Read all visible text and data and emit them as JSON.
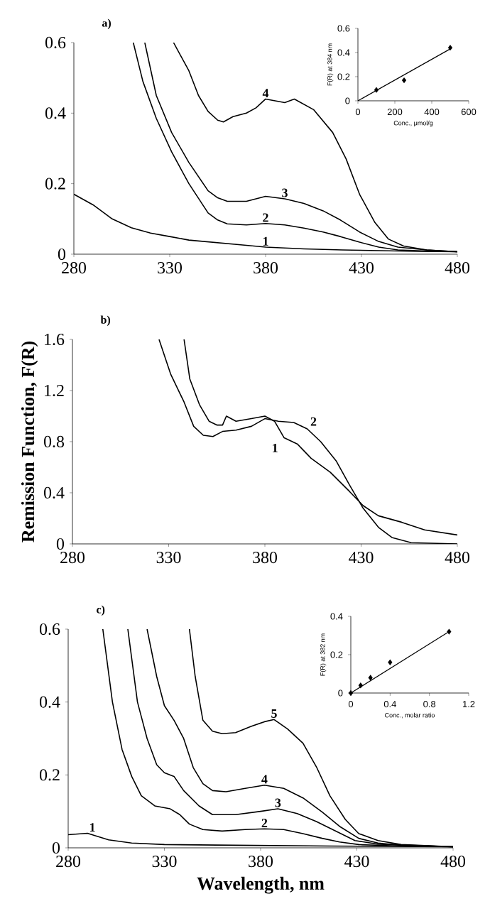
{
  "chart_data": [
    {
      "type": "line",
      "title": "a)",
      "xlim": [
        280,
        480
      ],
      "ylim": [
        0,
        0.6
      ],
      "xticks": [
        280,
        330,
        380,
        430,
        480
      ],
      "yticks": [
        0,
        0.2,
        0.4,
        0.6
      ],
      "series": [
        {
          "name": "1",
          "color": "#000000",
          "x": [
            280,
            290,
            300,
            310,
            320,
            330,
            340,
            350,
            360,
            370,
            380,
            400,
            420,
            440,
            460,
            480
          ],
          "values": [
            0.17,
            0.14,
            0.1,
            0.075,
            0.06,
            0.05,
            0.04,
            0.035,
            0.03,
            0.025,
            0.02,
            0.015,
            0.012,
            0.01,
            0.008,
            0.007
          ]
        },
        {
          "name": "2",
          "color": "#000000",
          "x": [
            311,
            316,
            323,
            331,
            340,
            350,
            355,
            360,
            370,
            380,
            390,
            400,
            410,
            419,
            429,
            439,
            449,
            464,
            480
          ],
          "values": [
            0.6,
            0.49,
            0.385,
            0.29,
            0.2,
            0.117,
            0.097,
            0.086,
            0.083,
            0.087,
            0.083,
            0.074,
            0.063,
            0.05,
            0.034,
            0.02,
            0.012,
            0.009,
            0.007
          ]
        },
        {
          "name": "3",
          "color": "#000000",
          "x": [
            317,
            323,
            331,
            340,
            350,
            355,
            360,
            370,
            380,
            390,
            400,
            410,
            419,
            429,
            439,
            449,
            464,
            480
          ],
          "values": [
            0.6,
            0.45,
            0.345,
            0.26,
            0.18,
            0.16,
            0.15,
            0.15,
            0.164,
            0.157,
            0.144,
            0.123,
            0.097,
            0.063,
            0.036,
            0.02,
            0.012,
            0.007
          ]
        },
        {
          "name": "4",
          "color": "#000000",
          "x": [
            332,
            340,
            345,
            350,
            355,
            358,
            363,
            370,
            375,
            380,
            390,
            395,
            405,
            415,
            422,
            429,
            437,
            444,
            452,
            464,
            480
          ],
          "values": [
            0.6,
            0.52,
            0.45,
            0.405,
            0.38,
            0.375,
            0.39,
            0.4,
            0.415,
            0.44,
            0.43,
            0.44,
            0.41,
            0.345,
            0.27,
            0.17,
            0.09,
            0.043,
            0.023,
            0.012,
            0.007
          ]
        }
      ]
    },
    {
      "type": "line",
      "title": "b)",
      "ylabel": "Remission Function, F(R)",
      "xlim": [
        280,
        480
      ],
      "ylim": [
        0,
        1.6
      ],
      "xticks": [
        280,
        330,
        380,
        430,
        480
      ],
      "yticks": [
        0,
        0.4,
        0.8,
        1.2,
        1.6
      ],
      "series": [
        {
          "name": "1",
          "color": "#000000",
          "x": [
            338,
            341,
            346,
            351,
            355,
            358,
            360,
            365,
            373,
            380,
            385,
            390,
            397,
            404,
            414,
            424,
            431,
            439,
            451,
            463,
            480
          ],
          "values": [
            1.6,
            1.29,
            1.09,
            0.96,
            0.93,
            0.93,
            1.0,
            0.96,
            0.98,
            1.0,
            0.96,
            0.83,
            0.78,
            0.67,
            0.56,
            0.41,
            0.3,
            0.22,
            0.17,
            0.11,
            0.07
          ]
        },
        {
          "name": "2",
          "color": "#000000",
          "x": [
            325,
            331,
            338,
            343,
            348,
            353,
            358,
            365,
            373,
            380,
            387,
            395,
            402,
            409,
            417,
            424,
            431,
            439,
            446,
            456,
            480
          ],
          "values": [
            1.6,
            1.33,
            1.11,
            0.92,
            0.85,
            0.84,
            0.88,
            0.89,
            0.92,
            0.98,
            0.96,
            0.95,
            0.9,
            0.8,
            0.65,
            0.46,
            0.28,
            0.13,
            0.05,
            0.01,
            0
          ]
        }
      ]
    },
    {
      "type": "line",
      "title": "c)",
      "xlabel": "Wavelength, nm",
      "xlim": [
        280,
        480
      ],
      "ylim": [
        0,
        0.6
      ],
      "xticks": [
        280,
        330,
        380,
        430,
        480
      ],
      "yticks": [
        0,
        0.2,
        0.4,
        0.6
      ],
      "series": [
        {
          "name": "1",
          "color": "#000000",
          "x": [
            280,
            290,
            301,
            313,
            330,
            367,
            417,
            480
          ],
          "values": [
            0.036,
            0.04,
            0.022,
            0.013,
            0.009,
            0.007,
            0.005,
            0.003
          ]
        },
        {
          "name": "2",
          "color": "#000000",
          "x": [
            298,
            303,
            308,
            313,
            318,
            325,
            333,
            338,
            343,
            350,
            360,
            372,
            382,
            392,
            402,
            412,
            421,
            431,
            453,
            480
          ],
          "values": [
            0.6,
            0.4,
            0.27,
            0.196,
            0.143,
            0.115,
            0.107,
            0.091,
            0.065,
            0.05,
            0.046,
            0.05,
            0.052,
            0.05,
            0.039,
            0.026,
            0.016,
            0.009,
            0.005,
            0.003
          ]
        },
        {
          "name": "3",
          "color": "#000000",
          "x": [
            311,
            316,
            321,
            326,
            330,
            335,
            340,
            348,
            355,
            367,
            380,
            389,
            399,
            409,
            419,
            429,
            441,
            480
          ],
          "values": [
            0.6,
            0.4,
            0.3,
            0.228,
            0.206,
            0.196,
            0.157,
            0.115,
            0.091,
            0.091,
            0.1,
            0.107,
            0.094,
            0.072,
            0.046,
            0.02,
            0.01,
            0.003
          ]
        },
        {
          "name": "4",
          "color": "#000000",
          "x": [
            321,
            326,
            330,
            335,
            340,
            345,
            350,
            355,
            362,
            372,
            382,
            392,
            402,
            412,
            421,
            431,
            441,
            453,
            480
          ],
          "values": [
            0.6,
            0.47,
            0.39,
            0.35,
            0.3,
            0.22,
            0.176,
            0.157,
            0.154,
            0.163,
            0.172,
            0.163,
            0.137,
            0.098,
            0.059,
            0.026,
            0.013,
            0.007,
            0.003
          ]
        },
        {
          "name": "5",
          "color": "#000000",
          "x": [
            343,
            346,
            350,
            355,
            360,
            367,
            375,
            382,
            387,
            394,
            402,
            409,
            416,
            424,
            431,
            441,
            453,
            480
          ],
          "values": [
            0.6,
            0.47,
            0.35,
            0.32,
            0.313,
            0.316,
            0.333,
            0.346,
            0.352,
            0.326,
            0.287,
            0.222,
            0.143,
            0.078,
            0.039,
            0.02,
            0.009,
            0.003
          ]
        }
      ]
    },
    {
      "type": "scatter",
      "xlabel": "Conc., μmol/g",
      "ylabel": "F(R) at 384 nm",
      "xlim": [
        0,
        600
      ],
      "ylim": [
        0,
        0.6
      ],
      "xticks": [
        0,
        200,
        400,
        600
      ],
      "yticks": [
        0,
        0.2,
        0.4,
        0.6
      ],
      "series": [
        {
          "color": "#000000",
          "marker": "diamond",
          "x": [
            100,
            250,
            500
          ],
          "values": [
            0.09,
            0.17,
            0.44
          ]
        },
        {
          "type": "line",
          "color": "#000000",
          "x": [
            0,
            500
          ],
          "values": [
            0,
            0.43
          ]
        }
      ]
    },
    {
      "type": "scatter",
      "xlabel": "Conc., molar ratio",
      "ylabel": "F(R) at 382 nm",
      "xlim": [
        0,
        1.2
      ],
      "ylim": [
        0,
        0.4
      ],
      "xticks": [
        0,
        0.4,
        0.8,
        1.2
      ],
      "yticks": [
        0,
        0.2,
        0.4
      ],
      "series": [
        {
          "color": "#000000",
          "marker": "diamond",
          "x": [
            0,
            0.1,
            0.2,
            0.4,
            1.0
          ],
          "values": [
            0,
            0.04,
            0.08,
            0.16,
            0.32
          ]
        },
        {
          "type": "line",
          "color": "#000000",
          "x": [
            0,
            1.0
          ],
          "values": [
            0,
            0.32
          ]
        }
      ]
    }
  ]
}
